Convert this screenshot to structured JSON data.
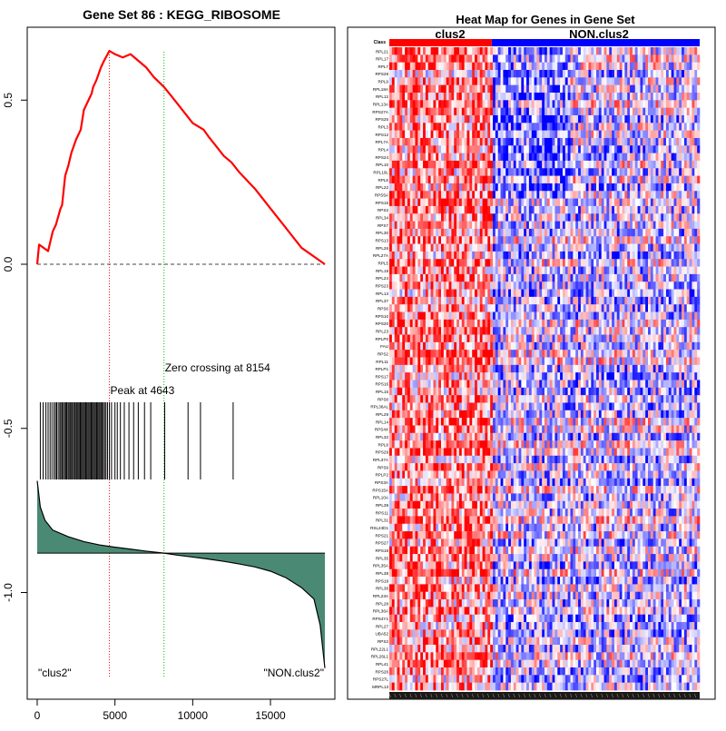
{
  "chart_data": [
    {
      "type": "line",
      "panel": "enrichment-plot",
      "title": "Gene Set  86 : KEGG_RIBOSOME",
      "xlabel": "",
      "ylabel": "",
      "xlim": [
        0,
        18500
      ],
      "ylim": [
        -1.3,
        0.72
      ],
      "x_ticks": [
        0,
        5000,
        10000,
        15000
      ],
      "x_tick_labels": [
        "0",
        "5000",
        "10000",
        "15000"
      ],
      "y_ticks": [
        0.5,
        0.0,
        -0.5,
        -1.0
      ],
      "y_tick_labels": [
        "0.5",
        "0.0",
        "-0.5",
        "-1.0"
      ],
      "n_genes": 18500,
      "series": [
        {
          "name": "running enrichment score",
          "color": "#ff0000",
          "x": [
            0,
            120,
            700,
            1000,
            1200,
            1500,
            1600,
            1800,
            2000,
            2200,
            2500,
            2800,
            3000,
            3200,
            3500,
            3600,
            3800,
            4100,
            4300,
            4643,
            5000,
            5500,
            6000,
            6500,
            7000,
            7500,
            8154,
            8500,
            9000,
            9500,
            10000,
            10700,
            11000,
            11500,
            12000,
            12500,
            13000,
            14000,
            15000,
            16000,
            17000,
            18500
          ],
          "y": [
            0.0,
            0.06,
            0.04,
            0.1,
            0.12,
            0.17,
            0.18,
            0.27,
            0.3,
            0.34,
            0.38,
            0.41,
            0.47,
            0.49,
            0.52,
            0.54,
            0.56,
            0.6,
            0.62,
            0.65,
            0.64,
            0.63,
            0.64,
            0.62,
            0.6,
            0.57,
            0.54,
            0.52,
            0.49,
            0.46,
            0.43,
            0.41,
            0.39,
            0.36,
            0.33,
            0.31,
            0.28,
            0.23,
            0.17,
            0.11,
            0.05,
            0.0
          ]
        },
        {
          "name": "ranked list metric",
          "color": "#000000",
          "fill": "#4a8a74",
          "baseline": -0.88,
          "x": [
            0,
            200,
            500,
            1000,
            2000,
            3000,
            4000,
            5000,
            6000,
            7000,
            8154,
            9000,
            10000,
            11000,
            12000,
            13000,
            14000,
            15000,
            16000,
            17000,
            17800,
            18200,
            18500
          ],
          "y": [
            -0.66,
            -0.74,
            -0.78,
            -0.81,
            -0.83,
            -0.845,
            -0.855,
            -0.862,
            -0.868,
            -0.874,
            -0.88,
            -0.886,
            -0.892,
            -0.898,
            -0.905,
            -0.913,
            -0.922,
            -0.935,
            -0.955,
            -0.985,
            -1.02,
            -1.1,
            -1.23
          ]
        }
      ],
      "hits_x": [
        200,
        380,
        560,
        700,
        830,
        950,
        1080,
        1180,
        1250,
        1350,
        1450,
        1520,
        1600,
        1680,
        1760,
        1830,
        1900,
        1980,
        2050,
        2120,
        2200,
        2270,
        2340,
        2420,
        2500,
        2560,
        2630,
        2700,
        2770,
        2840,
        2910,
        2980,
        3050,
        3120,
        3190,
        3260,
        3330,
        3400,
        3470,
        3540,
        3610,
        3680,
        3750,
        3820,
        3890,
        3960,
        4030,
        4100,
        4170,
        4250,
        4330,
        4420,
        4520,
        4643,
        4780,
        5000,
        5150,
        5350,
        5600,
        5900,
        6200,
        6500,
        6900,
        7300,
        8200,
        9700,
        10500,
        12600
      ],
      "reference_lines": [
        {
          "name": "peak",
          "x": 4643,
          "color": "#ff0000",
          "label": "Peak at 4643"
        },
        {
          "name": "zero-crossing",
          "x": 8154,
          "color": "#00bb00",
          "label": "Zero crossing at 8154"
        }
      ],
      "baseline_value": 0.0,
      "annotations": {
        "left_label": "\"clus2\"",
        "right_label": "\"NON.clus2\""
      }
    },
    {
      "type": "heatmap",
      "panel": "heat-map",
      "title": "Heat Map for Genes in Gene Set",
      "class_row_label": "Class",
      "groups": [
        {
          "name": "clus2",
          "color": "#ff0000",
          "fraction": 0.33
        },
        {
          "name": "NON.clus2",
          "color": "#0000ff",
          "fraction": 0.67
        }
      ],
      "color_scale": {
        "low": "#0000ff",
        "mid": "#ffffff",
        "high": "#ff0000"
      },
      "n_samples": 120,
      "genes": [
        "RPL21",
        "RPL17",
        "RPL7",
        "RPS28",
        "RPL9",
        "RPL18A",
        "RPL12",
        "RPL13A",
        "RPS27A",
        "RPS25",
        "RPL3",
        "RPS12",
        "RPL7A",
        "RPL4",
        "RPS24",
        "RPL10",
        "RPL10L",
        "RPL6",
        "RPL22",
        "RPS5A",
        "RPS15",
        "RPS3",
        "RPL34",
        "RPS7",
        "RPL30",
        "RPS13",
        "RPL26",
        "RPL27A",
        "RPL5",
        "RPL19",
        "RPL24",
        "RPS23",
        "RPL13",
        "RPL37",
        "RPS6",
        "RPS10",
        "RPS20",
        "RPL23",
        "RPLP0",
        "FAU",
        "RPS2",
        "RPL11",
        "RPLP1",
        "RPS17",
        "RPS16",
        "RPL15",
        "RPS8",
        "RPL36AL",
        "RPL29",
        "RPL14",
        "RPS4X",
        "RPL32",
        "RPL8",
        "RPS29",
        "RPL37A",
        "RPS9",
        "RPLP2",
        "RPS3A",
        "RPS15A",
        "RPL10A",
        "RPL39",
        "RPS11",
        "RPL31",
        "RSL24D1",
        "RPS21",
        "RPS27",
        "RPS18",
        "RPL35",
        "RPL35A",
        "RPL38",
        "RPS19",
        "RPL36",
        "RPL23A",
        "RPL28",
        "RPL36A",
        "RPS4Y1",
        "RPL27",
        "UBA52",
        "RPS3",
        "RPL22L1",
        "RPL26L1",
        "RPL41",
        "RPS26",
        "RPS27L",
        "MRPL13"
      ]
    }
  ]
}
